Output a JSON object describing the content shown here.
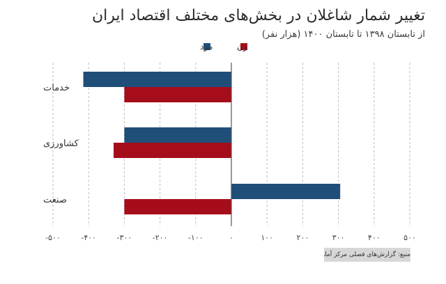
{
  "title": "تغییر شمار شاغلان در بخش‌های مختلف اقتصاد ایران",
  "subtitle": "از تابستان ۱۳۹۸ تا تابستان ۱۴۰۰ (هزار نفر)",
  "source": "منبع: گزارش‌های فصلی مرکز آمار ایران",
  "colors": {
    "men": "#1f4e79",
    "women": "#a50d1b",
    "grid": "#bdbdbd",
    "axis": "#555555"
  },
  "chart_data": {
    "type": "bar",
    "orientation": "horizontal",
    "categories": [
      "خدمات",
      "کشاورزی",
      "صنعت"
    ],
    "series": [
      {
        "name": "مرد",
        "values": [
          -415,
          -300,
          305
        ]
      },
      {
        "name": "زن",
        "values": [
          -300,
          -330,
          -300
        ]
      }
    ],
    "xlim": [
      -500,
      500
    ],
    "x_ticks": [
      -500,
      -400,
      -300,
      -200,
      -100,
      0,
      100,
      200,
      300,
      400,
      500
    ],
    "x_tick_labels": [
      "-۵۰۰",
      "-۴۰۰",
      "-۳۰۰",
      "-۲۰۰",
      "-۱۰۰",
      "۰",
      "۱۰۰",
      "۲۰۰",
      "۳۰۰",
      "۴۰۰",
      "۵۰۰"
    ],
    "grid": true,
    "legend": "top"
  }
}
